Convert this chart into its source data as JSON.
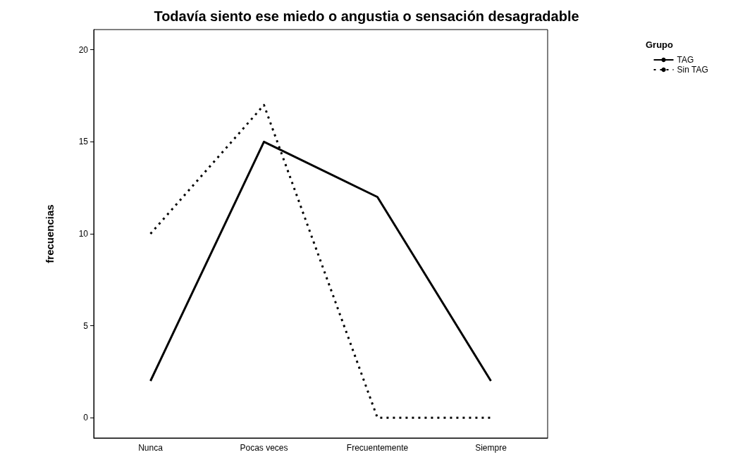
{
  "chart_data": {
    "type": "line",
    "title": "Todavía siento ese miedo o angustia o sensación desagradable",
    "ylabel": "frecuencias",
    "legend_title": "Grupo",
    "legend": "top right",
    "grid": false,
    "marker": "none",
    "categories": [
      "Nunca",
      "Pocas veces",
      "Frecuentemente",
      "Siempre"
    ],
    "ylim": [
      -1.1,
      21.1
    ],
    "yticks": [
      0,
      5,
      10,
      15,
      20
    ],
    "series": [
      {
        "name": "TAG",
        "color": "#000000",
        "line_style": "solid",
        "values": [
          2,
          15,
          12,
          2
        ]
      },
      {
        "name": "Sin TAG",
        "color": "#000000",
        "line_style": "dotted",
        "values": [
          10,
          17,
          0,
          0
        ]
      }
    ]
  }
}
